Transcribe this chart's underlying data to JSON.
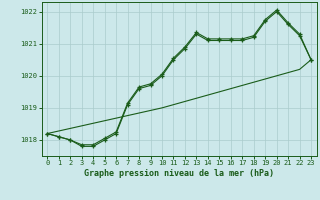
{
  "title": "Graphe pression niveau de la mer (hPa)",
  "background_color": "#cce8ea",
  "grid_color": "#aacccc",
  "line_color": "#1a5c1a",
  "marker_color": "#1a5c1a",
  "ylim": [
    1017.5,
    1022.3
  ],
  "xlim": [
    -0.5,
    23.5
  ],
  "yticks": [
    1018,
    1019,
    1020,
    1021,
    1022
  ],
  "xticks": [
    0,
    1,
    2,
    3,
    4,
    5,
    6,
    7,
    8,
    9,
    10,
    11,
    12,
    13,
    14,
    15,
    16,
    17,
    18,
    19,
    20,
    21,
    22,
    23
  ],
  "series_main": [
    1018.2,
    1018.1,
    1018.0,
    1017.8,
    1017.8,
    1018.0,
    1018.2,
    1019.1,
    1019.6,
    1019.7,
    1020.0,
    1020.5,
    1020.85,
    1021.3,
    1021.1,
    1021.1,
    1021.1,
    1021.1,
    1021.2,
    1021.7,
    1022.0,
    1021.6,
    1021.25,
    1020.5
  ],
  "series_upper": [
    1018.2,
    1018.1,
    1018.0,
    1017.85,
    1017.85,
    1018.05,
    1018.25,
    1019.15,
    1019.65,
    1019.75,
    1020.05,
    1020.55,
    1020.9,
    1021.35,
    1021.15,
    1021.15,
    1021.15,
    1021.15,
    1021.25,
    1021.75,
    1022.05,
    1021.65,
    1021.3,
    1020.5
  ],
  "series_straight": [
    1018.2,
    1018.28,
    1018.36,
    1018.44,
    1018.52,
    1018.6,
    1018.68,
    1018.76,
    1018.84,
    1018.92,
    1019.0,
    1019.1,
    1019.2,
    1019.3,
    1019.4,
    1019.5,
    1019.6,
    1019.7,
    1019.8,
    1019.9,
    1020.0,
    1020.1,
    1020.2,
    1020.5
  ]
}
